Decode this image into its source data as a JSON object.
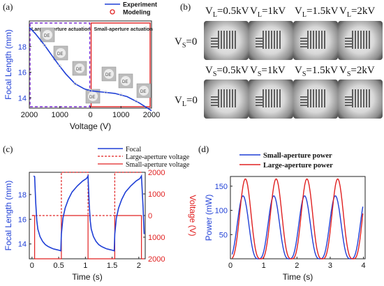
{
  "panels": {
    "a": {
      "label": "(a)"
    },
    "b": {
      "label": "(b)"
    },
    "c": {
      "label": "(c)"
    },
    "d": {
      "label": "(d)"
    }
  },
  "chart_data": [
    {
      "id": "a",
      "type": "line",
      "xlabel": "Voltage (V)",
      "ylabel": "Focal Length (mm)",
      "xticks": [
        "2000",
        "1000",
        "0",
        "1000",
        "2000"
      ],
      "yticks": [
        "14",
        "16",
        "18"
      ],
      "ylim": [
        13.2,
        20.0
      ],
      "legend": [
        "Experiment",
        "Modeling"
      ],
      "annotations": [
        "Large-aperture actuation",
        "Small-aperture actuation"
      ],
      "series": [
        {
          "name": "Experiment",
          "color": "#1f3fd6",
          "x": [
            0,
            0.1,
            0.25,
            0.4,
            0.5,
            0.6,
            0.75,
            0.9,
            1.0,
            1.2,
            1.4,
            1.6,
            1.8,
            2.0
          ],
          "y": [
            19.5,
            19.0,
            18.1,
            17.1,
            16.45,
            15.85,
            15.1,
            14.7,
            14.55,
            14.45,
            14.35,
            14.1,
            13.6,
            13.0
          ]
        }
      ],
      "modeling": {
        "color": "#e02020",
        "x": [
          0.25,
          0.5,
          0.75,
          1.0,
          1.25,
          1.5,
          1.75
        ],
        "y": [
          18.1,
          16.5,
          15.1,
          14.55,
          14.45,
          14.25,
          13.75
        ]
      }
    },
    {
      "id": "c",
      "type": "line",
      "xlabel": "Time (s)",
      "ylabel": "Focal Length (mm)",
      "y2label": "Voltage (V)",
      "xticks": [
        "0",
        "0.5",
        "1",
        "1.5",
        "2"
      ],
      "yticks": [
        "14",
        "16",
        "18"
      ],
      "y2ticks": [
        "2000",
        "1000",
        "0",
        "1000",
        "2000"
      ],
      "xlim": [
        -0.05,
        2.12
      ],
      "ylim": [
        12.8,
        19.8
      ],
      "legend": [
        "Focal",
        "Large-aperture voltage",
        "Small-aperture voltage"
      ],
      "series": [
        {
          "name": "Focal",
          "color": "#1f3fd6",
          "x": [
            0.03,
            0.05,
            0.07,
            0.09,
            0.11,
            0.15,
            0.2,
            0.25,
            0.3,
            0.35,
            0.4,
            0.45,
            0.5,
            0.54,
            0.55,
            0.58,
            0.62,
            0.68,
            0.75,
            0.85,
            0.95,
            1.02,
            1.05,
            1.07,
            1.09,
            1.11,
            1.15,
            1.2,
            1.25,
            1.3,
            1.35,
            1.4,
            1.45,
            1.5,
            1.54,
            1.55,
            1.58,
            1.62,
            1.68,
            1.75,
            1.85,
            1.95,
            2.02,
            2.05,
            2.08,
            2.1
          ],
          "y": [
            19.5,
            19.45,
            17.3,
            15.9,
            15.2,
            14.6,
            14.2,
            13.95,
            13.8,
            13.7,
            13.6,
            13.55,
            13.5,
            13.45,
            14.8,
            16.1,
            16.9,
            17.6,
            18.2,
            18.7,
            19.1,
            19.3,
            19.5,
            17.3,
            15.9,
            15.2,
            14.6,
            14.2,
            13.95,
            13.8,
            13.7,
            13.6,
            13.55,
            13.5,
            13.45,
            14.8,
            16.1,
            16.9,
            17.6,
            18.2,
            18.7,
            19.1,
            19.3,
            19.5,
            17.0,
            14.8
          ]
        },
        {
          "name": "Large-aperture voltage",
          "color": "#e02020",
          "dash": true,
          "x": [
            0.0,
            0.55,
            0.55,
            1.05,
            1.05,
            1.55,
            1.55,
            2.05
          ],
          "y": [
            0,
            0,
            2000,
            2000,
            0,
            0,
            2000,
            2000
          ]
        },
        {
          "name": "Small-aperture voltage",
          "color": "#e02020",
          "x": [
            0.0,
            0.05,
            0.05,
            0.55,
            0.55,
            1.05,
            1.05,
            1.55,
            1.55,
            2.05,
            2.05,
            2.1
          ],
          "y": [
            0,
            0,
            -2000,
            -2000,
            0,
            0,
            -2000,
            -2000,
            0,
            0,
            -2000,
            -2000
          ]
        }
      ]
    },
    {
      "id": "d",
      "type": "line",
      "xlabel": "Time (s)",
      "ylabel": "Power (mW)",
      "xticks": [
        "0",
        "1",
        "2",
        "3",
        "4"
      ],
      "yticks": [
        "50",
        "100",
        "150"
      ],
      "xlim": [
        0,
        4.05
      ],
      "ylim": [
        0,
        170
      ],
      "legend": [
        "Small-aperture power",
        "Large-aperture power"
      ],
      "series": [
        {
          "name": "Small-aperture power",
          "color": "#1f3fd6",
          "amp": 130,
          "phase": 0.38
        },
        {
          "name": "Large-aperture power",
          "color": "#e02020",
          "amp": 165,
          "phase": 0.45
        }
      ]
    }
  ],
  "photos": {
    "top_labels": [
      "VL=0.5kV",
      "VL=1kV",
      "VL=1.5kV",
      "VL=2kV"
    ],
    "row_labels": [
      "VS=0",
      "VL=0"
    ],
    "bottom_labels": [
      "VS=0.5kV",
      "VS=1kV",
      "VS=1.5kV",
      "VS=2kV"
    ]
  },
  "photo_label_parts": {
    "top": [
      [
        "V",
        "L",
        "=0.5kV"
      ],
      [
        "V",
        "L",
        "=1kV"
      ],
      [
        "V",
        "L",
        "=1.5kV"
      ],
      [
        "V",
        "L",
        "=2kV"
      ]
    ],
    "bottom": [
      [
        "V",
        "S",
        "=0.5kV"
      ],
      [
        "V",
        "S",
        "=1kV"
      ],
      [
        "V",
        "S",
        "=1.5kV"
      ],
      [
        "V",
        "S",
        "=2kV"
      ]
    ],
    "row": [
      [
        "V",
        "S",
        "=0"
      ],
      [
        "V",
        "L",
        "=0"
      ]
    ]
  },
  "colors": {
    "blue": "#1f3fd6",
    "red": "#e02020",
    "axis": "#222222"
  }
}
